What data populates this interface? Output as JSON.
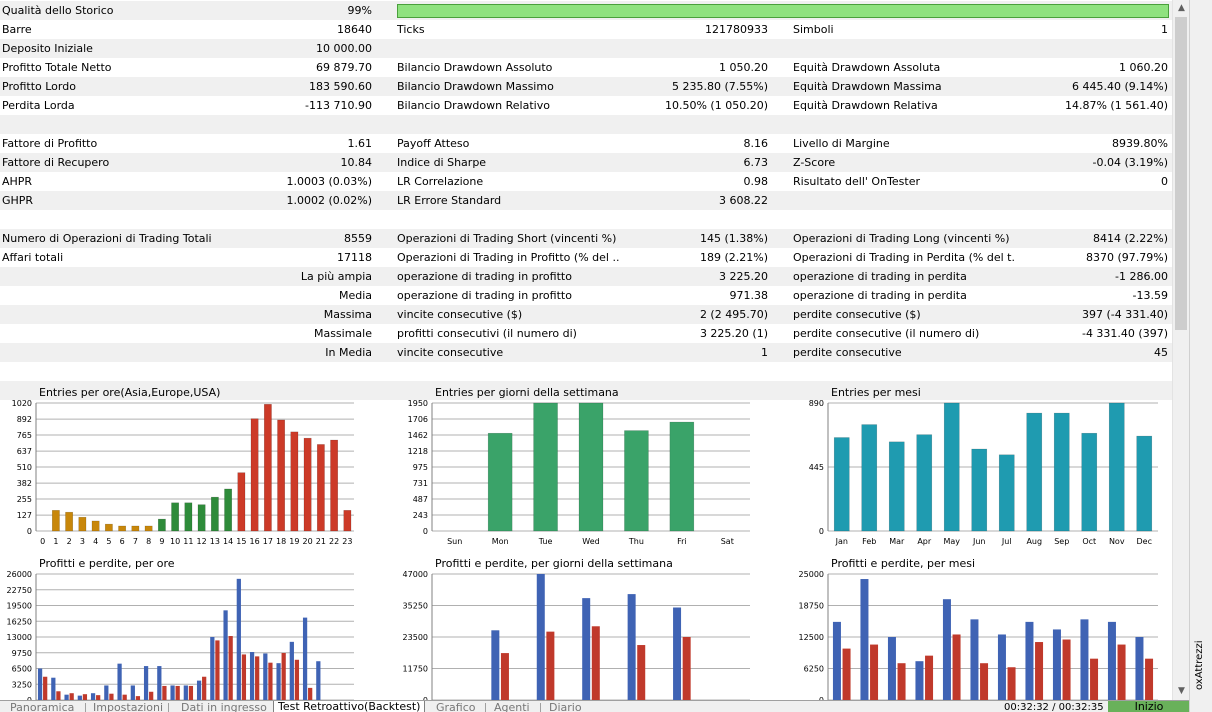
{
  "report": {
    "rows": [
      {
        "shade": true,
        "a_label": "Qualità dello Storico",
        "a_value": "99%",
        "quality_percent": 99
      },
      {
        "shade": false,
        "a_label": "Barre",
        "a_value": "18640",
        "b_label": "Ticks",
        "b_value": "121780933",
        "c_label": "Simboli",
        "c_value": "1"
      },
      {
        "shade": true,
        "a_label": "Deposito Iniziale",
        "a_value": "10 000.00"
      },
      {
        "shade": false,
        "a_label": "Profitto Totale Netto",
        "a_value": "69 879.70",
        "b_label": "Bilancio Drawdown Assoluto",
        "b_value": "1 050.20",
        "c_label": "Equità Drawdown Assoluta",
        "c_value": "1 060.20"
      },
      {
        "shade": true,
        "a_label": "Profitto Lordo",
        "a_value": "183 590.60",
        "b_label": "Bilancio Drawdown Massimo",
        "b_value": "5 235.80 (7.55%)",
        "c_label": "Equità Drawdown Massima",
        "c_value": "6 445.40 (9.14%)"
      },
      {
        "shade": false,
        "a_label": "Perdita Lorda",
        "a_value": "-113 710.90",
        "b_label": "Bilancio Drawdown Relativo",
        "b_value": "10.50% (1 050.20)",
        "c_label": "Equità Drawdown Relativa",
        "c_value": "14.87% (1 561.40)"
      },
      {
        "shade": true
      },
      {
        "shade": false,
        "a_label": "Fattore di Profitto",
        "a_value": "1.61",
        "b_label": "Payoff Atteso",
        "b_value": "8.16",
        "c_label": "Livello di Margine",
        "c_value": "8939.80%"
      },
      {
        "shade": true,
        "a_label": "Fattore di Recupero",
        "a_value": "10.84",
        "b_label": "Indice di Sharpe",
        "b_value": "6.73",
        "c_label": "Z-Score",
        "c_value": "-0.04 (3.19%)"
      },
      {
        "shade": false,
        "a_label": "AHPR",
        "a_value": "1.0003 (0.03%)",
        "b_label": "LR Correlazione",
        "b_value": "0.98",
        "c_label": "Risultato dell' OnTester",
        "c_value": "0"
      },
      {
        "shade": true,
        "a_label": "GHPR",
        "a_value": "1.0002 (0.02%)",
        "b_label": "LR Errore Standard",
        "b_value": "3 608.22"
      },
      {
        "shade": false
      },
      {
        "shade": true,
        "a_label": "Numero di Operazioni di Trading Totali",
        "a_value": "8559",
        "b_label": "Operazioni di Trading Short (vincenti %)",
        "b_value": "145 (1.38%)",
        "c_label": "Operazioni di Trading Long (vincenti %)",
        "c_value": "8414 (2.22%)"
      },
      {
        "shade": false,
        "a_label": "Affari totali",
        "a_value": "17118",
        "b_label": "Operazioni di Trading in Profitto (% del ...",
        "b_value": "189 (2.21%)",
        "c_label": "Operazioni di Trading in Perdita (% del t...",
        "c_value": "8370 (97.79%)"
      },
      {
        "shade": true,
        "a_label_right": "La più ampia",
        "b_label": "operazione di trading in profitto",
        "b_value": "3 225.20",
        "c_label": "operazione di trading in perdita",
        "c_value": "-1 286.00"
      },
      {
        "shade": false,
        "a_label_right": "Media",
        "b_label": "operazione di trading in profitto",
        "b_value": "971.38",
        "c_label": "operazione di trading in perdita",
        "c_value": "-13.59"
      },
      {
        "shade": true,
        "a_label_right": "Massima",
        "b_label": "vincite consecutive ($)",
        "b_value": "2 (2 495.70)",
        "c_label": "perdite consecutive ($)",
        "c_value": "397 (-4 331.40)"
      },
      {
        "shade": false,
        "a_label_right": "Massimale",
        "b_label": "profitti consecutivi (il numero di)",
        "b_value": "3 225.20 (1)",
        "c_label": "perdite consecutive (il numero di)",
        "c_value": "-4 331.40 (397)"
      },
      {
        "shade": true,
        "a_label_right": "In Media",
        "b_label": "vincite consecutive",
        "b_value": "1",
        "c_label": "perdite consecutive",
        "c_value": "45"
      },
      {
        "shade": false
      },
      {
        "shade": true
      }
    ]
  },
  "chart_data": [
    {
      "id": "entries-hours",
      "type": "bar",
      "title": "Entries per ore(Asia,Europe,USA)",
      "yticks": [
        "0",
        "127",
        "255",
        "382",
        "510",
        "637",
        "765",
        "892",
        "1020"
      ],
      "ylim": [
        0,
        1020
      ],
      "categories": [
        "0",
        "1",
        "2",
        "3",
        "4",
        "5",
        "6",
        "7",
        "8",
        "9",
        "10",
        "11",
        "12",
        "13",
        "14",
        "15",
        "16",
        "17",
        "18",
        "19",
        "20",
        "21",
        "22",
        "23"
      ],
      "values": [
        0,
        165,
        150,
        110,
        80,
        55,
        40,
        40,
        40,
        95,
        225,
        225,
        210,
        270,
        335,
        465,
        895,
        1010,
        885,
        790,
        740,
        690,
        725,
        165
      ],
      "bar_colors": [
        "#c8870a",
        "#c8870a",
        "#c8870a",
        "#c8870a",
        "#c8870a",
        "#c8870a",
        "#c8870a",
        "#c8870a",
        "#c8870a",
        "#2e8b3a",
        "#2e8b3a",
        "#2e8b3a",
        "#2e8b3a",
        "#2e8b3a",
        "#2e8b3a",
        "#cc3a28",
        "#cc3a28",
        "#cc3a28",
        "#cc3a28",
        "#cc3a28",
        "#cc3a28",
        "#cc3a28",
        "#cc3a28",
        "#cc3a28"
      ]
    },
    {
      "id": "entries-weekdays",
      "type": "bar",
      "title": "Entries per giorni della settimana",
      "yticks": [
        "0",
        "243",
        "487",
        "731",
        "975",
        "1218",
        "1462",
        "1706",
        "1950"
      ],
      "ylim": [
        0,
        1950
      ],
      "categories": [
        "Sun",
        "Mon",
        "Tue",
        "Wed",
        "Thu",
        "Fri",
        "Sat"
      ],
      "values": [
        0,
        1490,
        1950,
        1950,
        1530,
        1660,
        0
      ],
      "bar_colors": [
        "#3aa369",
        "#3aa369",
        "#3aa369",
        "#3aa369",
        "#3aa369",
        "#3aa369",
        "#3aa369"
      ]
    },
    {
      "id": "entries-months",
      "type": "bar",
      "title": "Entries per mesi",
      "yticks": [
        "0",
        "445",
        "890"
      ],
      "ylim": [
        0,
        890
      ],
      "categories": [
        "Jan",
        "Feb",
        "Mar",
        "Apr",
        "May",
        "Jun",
        "Jul",
        "Aug",
        "Sep",
        "Oct",
        "Nov",
        "Dec"
      ],
      "values": [
        650,
        740,
        620,
        670,
        890,
        570,
        530,
        820,
        820,
        680,
        890,
        660
      ],
      "bar_colors": [
        "#1f9bb0",
        "#1f9bb0",
        "#1f9bb0",
        "#1f9bb0",
        "#1f9bb0",
        "#1f9bb0",
        "#1f9bb0",
        "#1f9bb0",
        "#1f9bb0",
        "#1f9bb0",
        "#1f9bb0",
        "#1f9bb0"
      ]
    },
    {
      "id": "pnl-hours",
      "type": "bar",
      "title": "Profitti e perdite, per ore",
      "yticks": [
        "0",
        "3250",
        "6500",
        "9750",
        "13000",
        "16250",
        "19500",
        "22750",
        "26000"
      ],
      "ylim": [
        0,
        26000
      ],
      "categories": [
        "0",
        "1",
        "2",
        "3",
        "4",
        "5",
        "6",
        "7",
        "8",
        "9",
        "10",
        "11",
        "12",
        "13",
        "14",
        "15",
        "16",
        "17",
        "18",
        "19",
        "20",
        "21",
        "22",
        "23"
      ],
      "series": [
        {
          "name": "Profitti",
          "color": "#3f63b4",
          "values": [
            6500,
            4600,
            1100,
            900,
            1400,
            3000,
            7500,
            3000,
            7000,
            7000,
            3000,
            3000,
            4000,
            13000,
            18500,
            25000,
            9900,
            9600,
            7600,
            12000,
            17000,
            8000,
            0,
            0
          ]
        },
        {
          "name": "Perdite",
          "color": "#c0392b",
          "values": [
            4800,
            1800,
            1400,
            1200,
            1000,
            1300,
            1100,
            800,
            1700,
            2900,
            2900,
            2900,
            4800,
            12300,
            13200,
            9400,
            9000,
            7700,
            9700,
            8300,
            2500,
            0,
            0,
            0
          ]
        }
      ]
    },
    {
      "id": "pnl-weekdays",
      "type": "bar",
      "title": "Profitti e perdite, per giorni della settimana",
      "yticks": [
        "0",
        "11750",
        "23500",
        "35250",
        "47000"
      ],
      "ylim": [
        0,
        47000
      ],
      "categories": [
        "Sun",
        "Mon",
        "Tue",
        "Wed",
        "Thu",
        "Fri",
        "Sat"
      ],
      "series": [
        {
          "name": "Profitti",
          "color": "#3f63b4",
          "values": [
            0,
            26000,
            47000,
            38000,
            39500,
            34500,
            0
          ]
        },
        {
          "name": "Perdite",
          "color": "#c0392b",
          "values": [
            0,
            17500,
            25500,
            27500,
            20500,
            23500,
            0
          ]
        }
      ]
    },
    {
      "id": "pnl-months",
      "type": "bar",
      "title": "Profitti e perdite, per mesi",
      "yticks": [
        "0",
        "6250",
        "12500",
        "18750",
        "25000"
      ],
      "ylim": [
        0,
        25000
      ],
      "categories": [
        "Jan",
        "Feb",
        "Mar",
        "Apr",
        "May",
        "Jun",
        "Jul",
        "Aug",
        "Sep",
        "Oct",
        "Nov",
        "Dec"
      ],
      "series": [
        {
          "name": "Profitti",
          "color": "#3f63b4",
          "values": [
            15500,
            24000,
            12500,
            7700,
            20000,
            16000,
            13000,
            15500,
            14000,
            16000,
            15500,
            12500
          ]
        },
        {
          "name": "Perdite",
          "color": "#c0392b",
          "values": [
            10200,
            11000,
            7300,
            8800,
            13000,
            7300,
            6500,
            11500,
            12000,
            8200,
            11000,
            8200
          ]
        }
      ]
    }
  ],
  "tabs": [
    {
      "label": "Panoramica",
      "active": false
    },
    {
      "label": "Impostazioni",
      "active": false
    },
    {
      "label": "Dati in ingresso",
      "active": false
    },
    {
      "label": "Test Retroattivo(Backtest)",
      "active": true
    },
    {
      "label": "Grafico",
      "active": false
    },
    {
      "label": "Agenti",
      "active": false
    },
    {
      "label": "Diario",
      "active": false
    }
  ],
  "status": {
    "time": "00:32:32 / 00:32:35",
    "start_label": "Inizio"
  },
  "side_panel": {
    "label": "oxAttrezzi"
  },
  "scrollbar": {
    "up_icon": "▲",
    "down_icon": "▼"
  }
}
